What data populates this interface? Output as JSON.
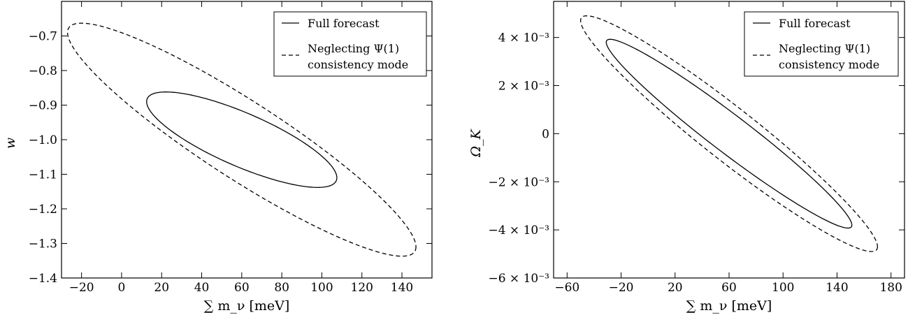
{
  "chart_data": [
    {
      "type": "line",
      "xlabel": "∑ m_ν [meV]",
      "ylabel": "w",
      "xlim": [
        -30,
        155
      ],
      "ylim": [
        -1.4,
        -0.6
      ],
      "xticks": [
        -20,
        0,
        20,
        40,
        60,
        80,
        100,
        120,
        140
      ],
      "yticks": [
        -1.4,
        -1.3,
        -1.2,
        -1.1,
        -1.0,
        -0.9,
        -0.8,
        -0.7
      ],
      "ytick_labels": [
        "−1.4",
        "−1.3",
        "−1.2",
        "−1.1",
        "−1.0",
        "−0.9",
        "−0.8",
        "−0.7"
      ],
      "xtick_labels": [
        "−20",
        "0",
        "20",
        "40",
        "60",
        "80",
        "100",
        "120",
        "140"
      ],
      "legend": {
        "position": "top-right",
        "entries": [
          "Full forecast",
          "Neglecting Ψ(1)",
          "consistency mode"
        ]
      },
      "series": [
        {
          "name": "Full forecast",
          "style": "solid",
          "center": [
            60,
            -1.0
          ],
          "ellipse": {
            "extreme_points": [
              [
                107.5,
                -1.11
              ],
              [
                12.5,
                -0.89
              ],
              [
                26,
                -0.863
              ],
              [
                94,
                -1.137
              ]
            ]
          }
        },
        {
          "name": "Neglecting Ψ(1) consistency mode",
          "style": "dashed",
          "center": [
            60,
            -1.0
          ],
          "ellipse": {
            "extreme_points": [
              [
                147,
                -1.31
              ],
              [
                -27,
                -0.69
              ],
              [
                -20,
                -0.663
              ],
              [
                140,
                -1.337
              ]
            ]
          }
        }
      ]
    },
    {
      "type": "line",
      "xlabel": "∑ m_ν [meV]",
      "ylabel": "Ω_K",
      "xlim": [
        -70,
        190
      ],
      "ylim": [
        -0.006,
        0.0055
      ],
      "xticks": [
        -60,
        -20,
        20,
        60,
        100,
        140,
        180
      ],
      "xtick_labels": [
        "−60",
        "−20",
        "20",
        "60",
        "100",
        "140",
        "180"
      ],
      "yticks": [
        -0.006,
        -0.004,
        -0.002,
        0,
        0.002,
        0.004
      ],
      "ytick_labels": [
        "−6 × 10⁻³",
        "−4 × 10⁻³",
        "−2 × 10⁻³",
        "0",
        "2 × 10⁻³",
        "4 × 10⁻³"
      ],
      "legend": {
        "position": "top-right",
        "entries": [
          "Full forecast",
          "Neglecting Ψ(1)",
          "consistency mode"
        ]
      },
      "series": [
        {
          "name": "Full forecast",
          "style": "solid",
          "center": [
            60,
            0
          ],
          "ellipse": {
            "extreme_points": [
              [
                151,
                -0.0038
              ],
              [
                -31,
                0.0038
              ],
              [
                -25,
                0.0039
              ],
              [
                145,
                -0.0039
              ]
            ]
          }
        },
        {
          "name": "Neglecting Ψ(1) consistency mode",
          "style": "dashed",
          "center": [
            60,
            0
          ],
          "ellipse": {
            "extreme_points": [
              [
                170,
                -0.0047
              ],
              [
                -50,
                0.0047
              ],
              [
                -45,
                0.0049
              ],
              [
                165,
                -0.0049
              ]
            ]
          }
        }
      ]
    }
  ]
}
